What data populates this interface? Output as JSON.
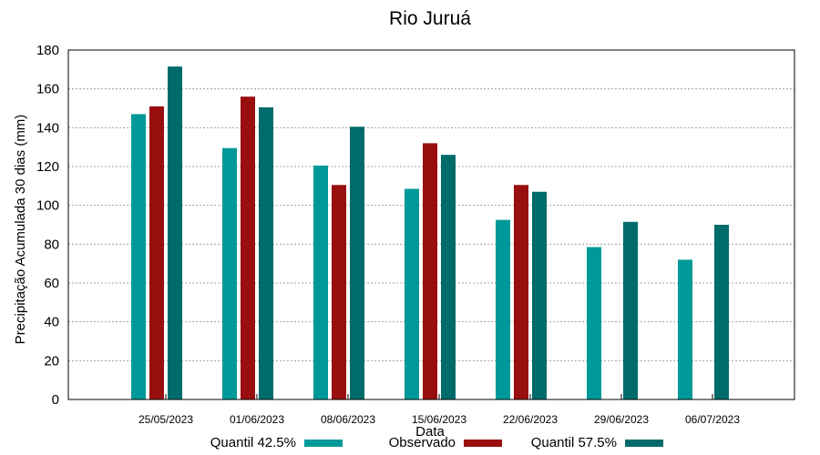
{
  "chart_data": {
    "type": "bar",
    "title": "Rio Juruá",
    "xlabel": "Data",
    "ylabel": "Precipitação Acumulada 30 dias (mm)",
    "ylim": [
      0,
      180
    ],
    "yticks": [
      0,
      20,
      40,
      60,
      80,
      100,
      120,
      140,
      160,
      180
    ],
    "categories": [
      "25/05/2023",
      "01/06/2023",
      "08/06/2023",
      "15/06/2023",
      "22/06/2023",
      "29/06/2023",
      "06/07/2023"
    ],
    "grid": true,
    "legend_position": "bottom",
    "series": [
      {
        "name": "Quantil 42.5%",
        "color": "#009999",
        "values": [
          147,
          129.5,
          120.5,
          108.5,
          92.5,
          78.5,
          72
        ]
      },
      {
        "name": "Observado",
        "color": "#990f0f",
        "values": [
          151,
          156,
          110.5,
          132,
          110.5,
          null,
          null
        ]
      },
      {
        "name": "Quantil 57.5%",
        "color": "#006b6b",
        "values": [
          171.5,
          150.5,
          140.5,
          126,
          107,
          91.5,
          90
        ]
      }
    ]
  }
}
